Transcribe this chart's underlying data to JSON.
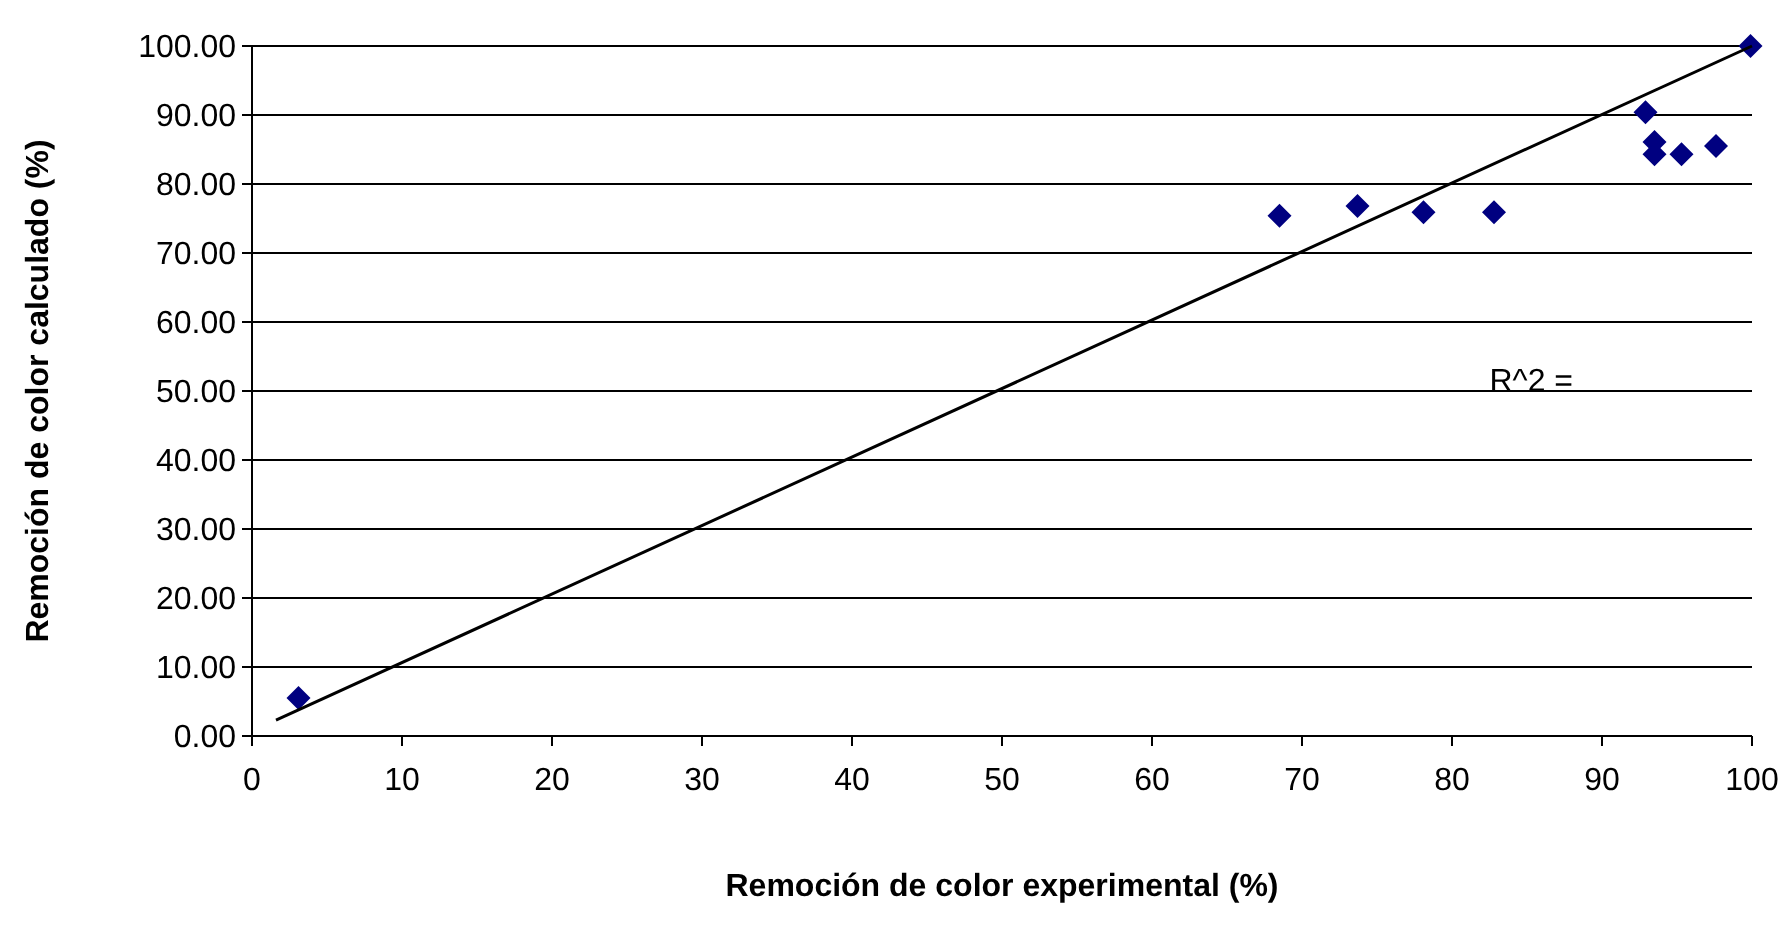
{
  "chart_data": {
    "type": "scatter",
    "xlabel": "Remoción de color experimental (%)",
    "ylabel": "Remoción de color calculado (%)",
    "xlim": [
      0,
      100
    ],
    "ylim": [
      0,
      100
    ],
    "xticks": [
      0,
      10,
      20,
      30,
      40,
      50,
      60,
      70,
      80,
      90,
      100
    ],
    "yticks": [
      {
        "value": 0,
        "label": "0.00"
      },
      {
        "value": 10,
        "label": "10.00"
      },
      {
        "value": 20,
        "label": "20.00"
      },
      {
        "value": 30,
        "label": "30.00"
      },
      {
        "value": 40,
        "label": "40.00"
      },
      {
        "value": 50,
        "label": "50.00"
      },
      {
        "value": 60,
        "label": "60.00"
      },
      {
        "value": 70,
        "label": "70.00"
      },
      {
        "value": 80,
        "label": "80.00"
      },
      {
        "value": 90,
        "label": "90.00"
      },
      {
        "value": 100,
        "label": "100.00"
      }
    ],
    "grid": "y",
    "series": [
      {
        "marker": "diamond",
        "color": "#000080",
        "x": [
          3.1,
          68.5,
          73.7,
          78.1,
          82.8,
          92.9,
          93.5,
          93.5,
          95.3,
          97.6,
          99.9
        ],
        "values": [
          5.5,
          75.4,
          76.8,
          75.9,
          75.9,
          90.4,
          86.1,
          84.3,
          84.3,
          85.5,
          100
        ]
      },
      {
        "type": "line",
        "color": "#000000",
        "x": [
          1.6,
          100
        ],
        "values": [
          2.3,
          100
        ]
      }
    ],
    "annotations": [
      "R^2 ="
    ]
  }
}
